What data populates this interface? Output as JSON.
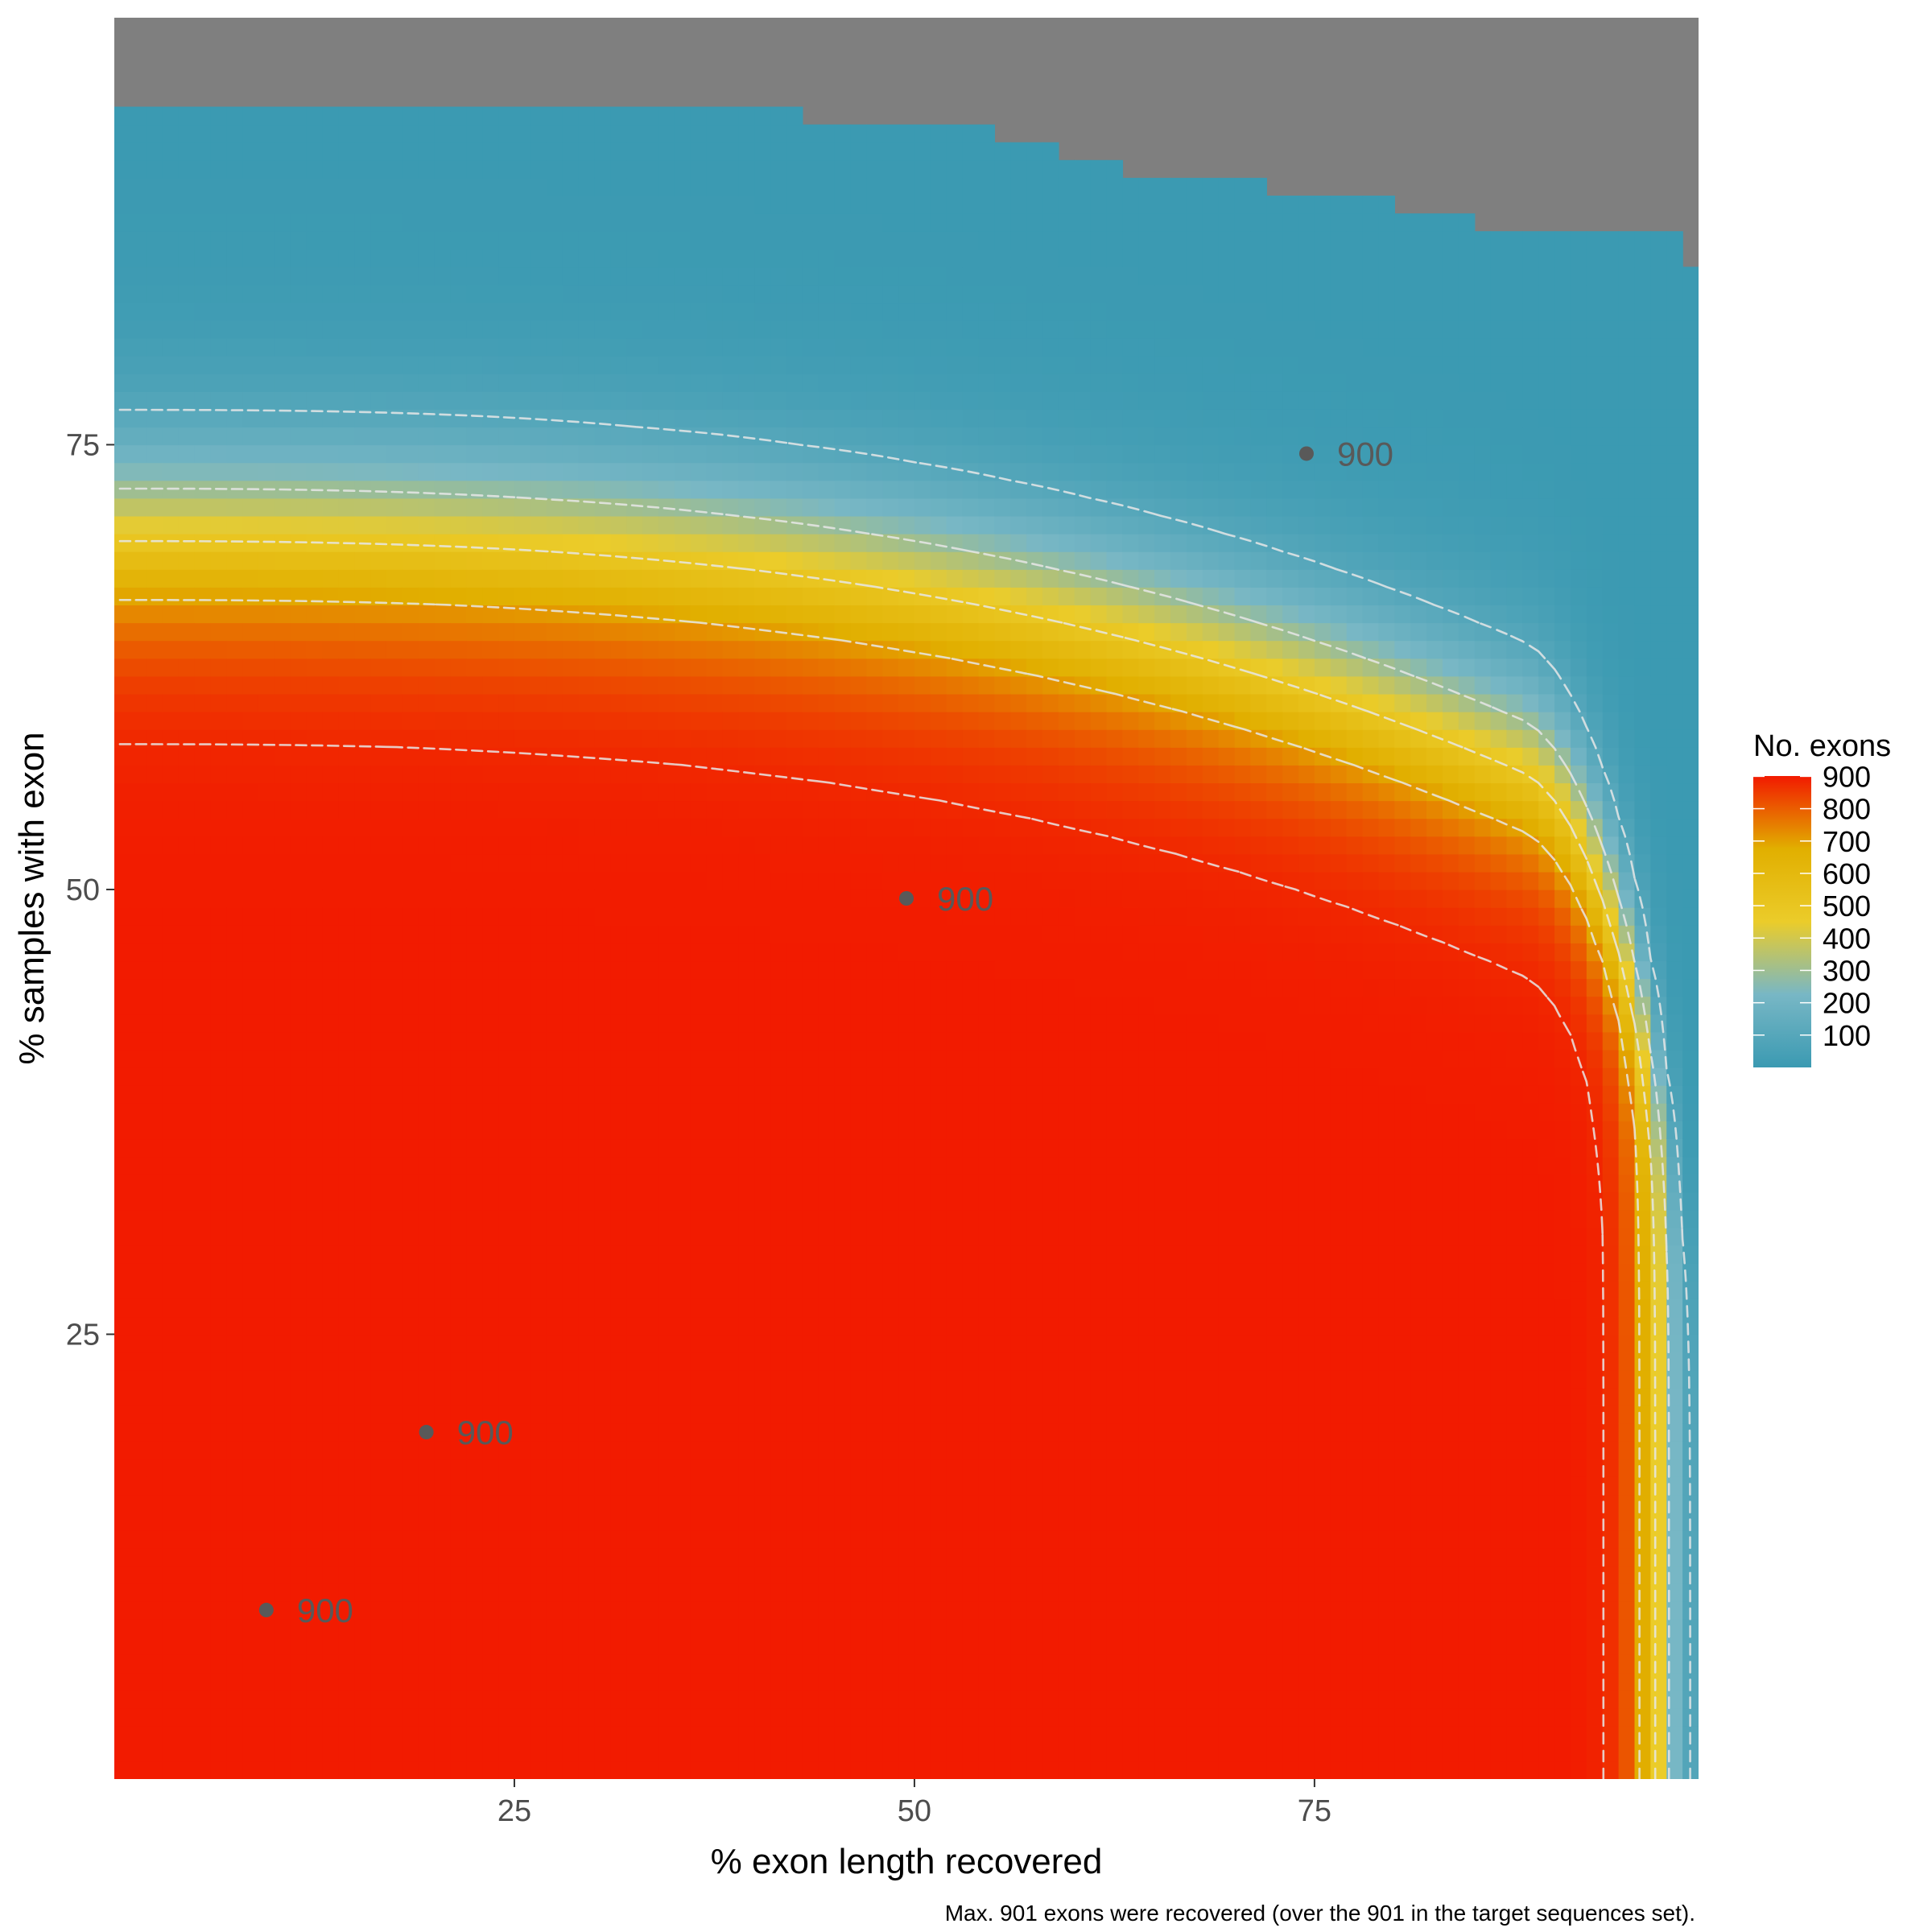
{
  "chart_data": {
    "type": "heatmap",
    "xlabel": "% exon length recovered",
    "ylabel": "% samples with exon",
    "caption": "Max. 901 exons were recovered (over the 901 in the target sequences set).",
    "xlim": [
      0,
      99
    ],
    "ylim": [
      0,
      99
    ],
    "x_ticks": [
      25,
      50,
      75
    ],
    "y_ticks": [
      25,
      50,
      75
    ],
    "legend": {
      "title": "No. exons",
      "placement": "right",
      "breaks": [
        900,
        800,
        700,
        600,
        500,
        400,
        300,
        200,
        100
      ],
      "range": [
        0,
        901
      ]
    },
    "colors": {
      "low": "#3B9AB2",
      "mid": "#E1AF00",
      "high": "#F21A00",
      "na": "#7F7F7F",
      "contour": "#E6E6E6",
      "point": "#595959"
    },
    "contour_levels": [
      100,
      300,
      500,
      700,
      880
    ],
    "na_boundary": [
      {
        "x": 0,
        "y": 93.9
      },
      {
        "x": 43,
        "y": 93.9
      },
      {
        "x": 43,
        "y": 93.2
      },
      {
        "x": 55,
        "y": 93.2
      },
      {
        "x": 55,
        "y": 92.0
      },
      {
        "x": 59,
        "y": 92.0
      },
      {
        "x": 59,
        "y": 91.0
      },
      {
        "x": 63,
        "y": 91.0
      },
      {
        "x": 63,
        "y": 89.9
      },
      {
        "x": 72,
        "y": 89.9
      },
      {
        "x": 72,
        "y": 89.0
      },
      {
        "x": 80,
        "y": 89.0
      },
      {
        "x": 80,
        "y": 88.0
      },
      {
        "x": 85,
        "y": 88.0
      },
      {
        "x": 85,
        "y": 87.1
      },
      {
        "x": 98,
        "y": 87.1
      },
      {
        "x": 98,
        "y": 85.0
      },
      {
        "x": 99,
        "y": 85.0
      }
    ],
    "points": [
      {
        "x": 9.5,
        "y": 9.5,
        "label": "900"
      },
      {
        "x": 19.5,
        "y": 19.5,
        "label": "900"
      },
      {
        "x": 49.5,
        "y": 49.5,
        "label": "900"
      },
      {
        "x": 74.5,
        "y": 74.5,
        "label": "900"
      }
    ]
  }
}
